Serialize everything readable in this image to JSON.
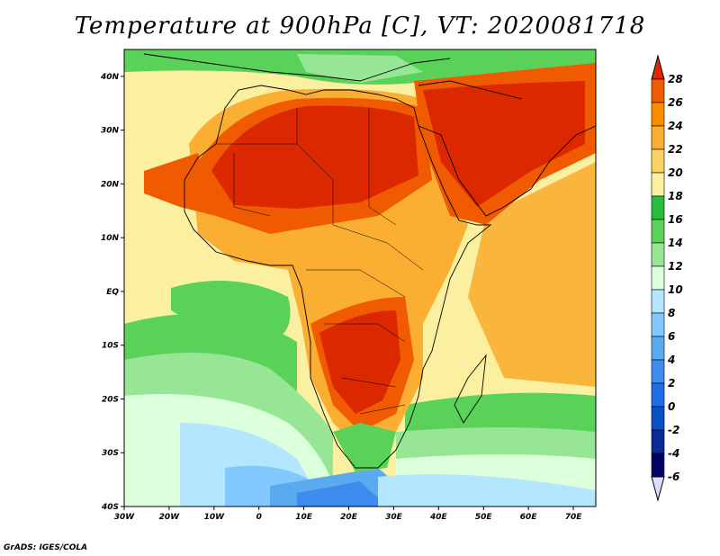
{
  "title": "Temperature at 900hPa [C], VT: 2020081718",
  "credit": "GrADS: IGES/COLA",
  "map": {
    "lon_range": [
      -30,
      75
    ],
    "lat_range": [
      -40,
      45
    ],
    "lon_ticks": [
      {
        "value": -30,
        "label": "30W"
      },
      {
        "value": -20,
        "label": "20W"
      },
      {
        "value": -10,
        "label": "10W"
      },
      {
        "value": 0,
        "label": "0"
      },
      {
        "value": 10,
        "label": "10E"
      },
      {
        "value": 20,
        "label": "20E"
      },
      {
        "value": 30,
        "label": "30E"
      },
      {
        "value": 40,
        "label": "40E"
      },
      {
        "value": 50,
        "label": "50E"
      },
      {
        "value": 60,
        "label": "60E"
      },
      {
        "value": 70,
        "label": "70E"
      }
    ],
    "lat_ticks": [
      {
        "value": 40,
        "label": "40N"
      },
      {
        "value": 30,
        "label": "30N"
      },
      {
        "value": 20,
        "label": "20N"
      },
      {
        "value": 10,
        "label": "10N"
      },
      {
        "value": 0,
        "label": "EQ"
      },
      {
        "value": -10,
        "label": "10S"
      },
      {
        "value": -20,
        "label": "20S"
      },
      {
        "value": -30,
        "label": "30S"
      },
      {
        "value": -40,
        "label": "40S"
      }
    ]
  },
  "colorbar": {
    "levels": [
      "28",
      "26",
      "24",
      "22",
      "20",
      "18",
      "16",
      "14",
      "12",
      "10",
      "8",
      "6",
      "4",
      "2",
      "0",
      "-2",
      "-4",
      "-6"
    ],
    "colors": [
      "#dc2800",
      "#f05a00",
      "#fa8c00",
      "#faae32",
      "#fad264",
      "#faf0a0",
      "#28be3c",
      "#5ad25a",
      "#96e696",
      "#dcffdc",
      "#b4e6ff",
      "#82c8ff",
      "#5aaaf0",
      "#3c8cf0",
      "#1e6ee6",
      "#0a50c8",
      "#0a2896",
      "#000064"
    ],
    "top_color": "#dc2800",
    "bottom_color": "#dcdcff"
  }
}
